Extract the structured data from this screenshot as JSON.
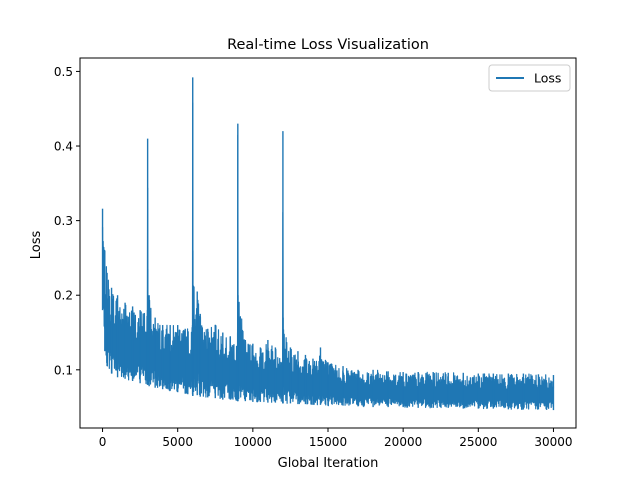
{
  "chart_data": {
    "type": "line",
    "title": "Real-time Loss Visualization",
    "xlabel": "Global Iteration",
    "ylabel": "Loss",
    "xlim": [
      -1500,
      31500
    ],
    "ylim": [
      0.022,
      0.518
    ],
    "x_ticks": [
      0,
      5000,
      10000,
      15000,
      20000,
      25000,
      30000
    ],
    "x_tick_labels": [
      "0",
      "5000",
      "10000",
      "15000",
      "20000",
      "25000",
      "30000"
    ],
    "y_ticks": [
      0.1,
      0.2,
      0.3,
      0.4,
      0.5
    ],
    "y_tick_labels": [
      "0.1",
      "0.2",
      "0.3",
      "0.4",
      "0.5"
    ],
    "grid": false,
    "legend": {
      "position": "top-right",
      "entries": [
        "Loss"
      ]
    },
    "series": [
      {
        "name": "Loss",
        "color": "#1f77b4",
        "x": [
          0,
          150,
          300,
          600,
          1000,
          1500,
          2000,
          2500,
          2990,
          3000,
          3010,
          3100,
          3500,
          4000,
          4500,
          5000,
          5500,
          5990,
          6000,
          6010,
          6300,
          6500,
          7000,
          7500,
          8000,
          8500,
          8990,
          9000,
          9010,
          9500,
          10000,
          10500,
          11000,
          11500,
          11990,
          12000,
          12010,
          12500,
          13000,
          13500,
          14000,
          14500,
          15000,
          16000,
          17000,
          18000,
          19000,
          20000,
          21000,
          22000,
          23000,
          24000,
          25000,
          26000,
          27000,
          28000,
          29000,
          30000
        ],
        "upper": [
          0.316,
          0.26,
          0.23,
          0.21,
          0.2,
          0.19,
          0.185,
          0.18,
          0.18,
          0.41,
          0.235,
          0.2,
          0.17,
          0.16,
          0.16,
          0.16,
          0.155,
          0.16,
          0.492,
          0.26,
          0.205,
          0.175,
          0.155,
          0.16,
          0.15,
          0.145,
          0.15,
          0.43,
          0.2,
          0.14,
          0.135,
          0.13,
          0.14,
          0.13,
          0.13,
          0.42,
          0.17,
          0.13,
          0.125,
          0.12,
          0.115,
          0.13,
          0.11,
          0.105,
          0.1,
          0.1,
          0.098,
          0.097,
          0.097,
          0.097,
          0.096,
          0.096,
          0.095,
          0.095,
          0.095,
          0.095,
          0.094,
          0.093
        ],
        "lower": [
          0.18,
          0.125,
          0.105,
          0.095,
          0.09,
          0.088,
          0.085,
          0.082,
          0.08,
          0.08,
          0.08,
          0.078,
          0.076,
          0.074,
          0.072,
          0.07,
          0.068,
          0.067,
          0.065,
          0.065,
          0.066,
          0.064,
          0.063,
          0.062,
          0.06,
          0.06,
          0.058,
          0.058,
          0.058,
          0.058,
          0.057,
          0.057,
          0.056,
          0.056,
          0.055,
          0.055,
          0.055,
          0.055,
          0.054,
          0.054,
          0.053,
          0.053,
          0.052,
          0.052,
          0.051,
          0.05,
          0.05,
          0.05,
          0.049,
          0.049,
          0.049,
          0.048,
          0.048,
          0.048,
          0.047,
          0.047,
          0.047,
          0.046
        ]
      }
    ]
  }
}
